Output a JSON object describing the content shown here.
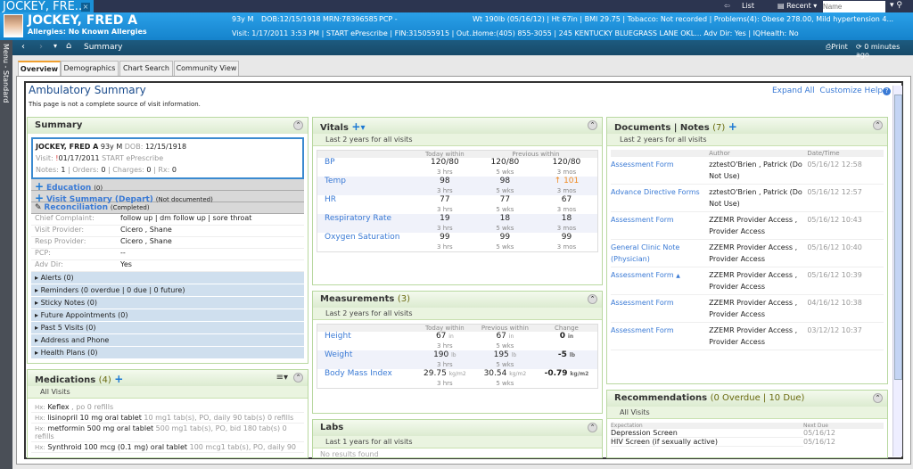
{
  "app": {
    "tab_title": "JOCKEY, FRE...",
    "close": "×",
    "list": "List",
    "recent": "Recent",
    "name_placeholder": "Name"
  },
  "banner": {
    "name": "JOCKEY, FRED A",
    "allergies": "Allergies: No Known Allergies",
    "age_sex": "93y  M",
    "dob": "DOB:12/15/1918",
    "mrn": "MRN:78396585",
    "pcp": "PCP -",
    "visit": "Visit: 1/17/2011 3:53 PM  |  START ePrescribe  |  FIN:315055915  |  Out...",
    "wt": "Wt 190lb (05/16/12)  |  Ht 67in  |  BMI 29.75  |  Tobacco: Not recorded  |  Problems(4):  Obese 278.00, Mild hypertension 4...",
    "home": "Home:(405) 855-3055  |  245 KENTUCKY BLUEGRASS LANE OKL...     Adv Dir: Yes  |  IQHealth: No"
  },
  "nav": {
    "title": "Summary",
    "print": "Print",
    "refresh": "0 minutes ago",
    "menu": "Menu - Standard"
  },
  "tabs": [
    "Overview",
    "Demographics",
    "Chart Search",
    "Community View"
  ],
  "page": {
    "title": "Ambulatory Summary",
    "note": "This page is not a complete source of visit information.",
    "expand_all": "Expand All",
    "customize": "Customize",
    "help": "Help"
  },
  "summary": {
    "title": "Summary",
    "name": "JOCKEY, FRED A",
    "agesex": "93y M",
    "dob_label": "DOB:",
    "dob": "12/15/1918",
    "visit_label": "Visit:",
    "visit_date": "01/17/2011",
    "visit_type": "START ePrescribe",
    "notes_label": "Notes:",
    "notes": "1",
    "orders_label": "Orders:",
    "orders": "0",
    "charges_label": "Charges:",
    "charges": "0",
    "rx_label": "Rx:",
    "rx": "0",
    "education": "Education",
    "education_count": "(0)",
    "visit_summary": "Visit Summary (Depart)",
    "visit_summary_status": "(Not documented)",
    "reconciliation": "Reconciliation",
    "reconciliation_status": "(Completed)",
    "rows": [
      {
        "k": "Chief Complaint:",
        "v": "follow up | dm follow up | sore throat"
      },
      {
        "k": "Visit Provider:",
        "v": "Cicero , Shane"
      },
      {
        "k": "Resp Provider:",
        "v": "Cicero , Shane"
      },
      {
        "k": "PCP:",
        "v": "--"
      },
      {
        "k": "Adv Dir:",
        "v": "Yes"
      }
    ],
    "sections": [
      "Alerts (0)",
      "Reminders (0 overdue | 0 due | 0 future)",
      "Sticky Notes (0)",
      "Future Appointments (0)",
      "Past 5 Visits (0)",
      "Address and Phone",
      "Health Plans (0)"
    ]
  },
  "medications": {
    "title": "Medications",
    "count": "(4)",
    "sub": "All Visits",
    "items": [
      {
        "hx": "Hx:",
        "name": "Keflex",
        "detail": " , po  0 refills"
      },
      {
        "hx": "Hx:",
        "name": "lisinopril 10 mg oral tablet",
        "detail": "  10 mg1 tab(s), PO, daily  90 tab(s) 0 refills"
      },
      {
        "hx": "Hx:",
        "name": "metformin 500 mg oral tablet",
        "detail": "  500 mg1 tab(s), PO, bid  180 tab(s) 0 refills"
      },
      {
        "hx": "Hx:",
        "name": "Synthroid 100 mcg (0.1 mg) oral tablet",
        "detail": "  100 mcg1 tab(s), PO, daily  90"
      }
    ]
  },
  "vitals": {
    "title": "Vitals",
    "sub": "Last 2 years for all visits",
    "h_today": "Today within",
    "h_prev": "Previous within",
    "rows": [
      {
        "n": "BP",
        "t": "120/80",
        "tw": "3 hrs",
        "p1": "120/80",
        "p1w": "5 wks",
        "p2": "120/80",
        "p2w": "3 mos"
      },
      {
        "n": "Temp",
        "t": "98",
        "tw": "3 hrs",
        "p1": "98",
        "p1w": "5 wks",
        "p2": "101",
        "p2w": "3 mos",
        "abn": true
      },
      {
        "n": "HR",
        "t": "77",
        "tw": "3 hrs",
        "p1": "77",
        "p1w": "5 wks",
        "p2": "67",
        "p2w": "3 mos"
      },
      {
        "n": "Respiratory Rate",
        "t": "19",
        "tw": "3 hrs",
        "p1": "18",
        "p1w": "5 wks",
        "p2": "18",
        "p2w": "3 mos"
      },
      {
        "n": "Oxygen Saturation",
        "t": "99",
        "tw": "3 hrs",
        "p1": "99",
        "p1w": "5 wks",
        "p2": "99",
        "p2w": "3 mos"
      }
    ]
  },
  "measurements": {
    "title": "Measurements",
    "count": "(3)",
    "sub": "Last 2 years for all visits",
    "h_today": "Today within",
    "h_prev": "Previous within",
    "h_change": "Change",
    "rows": [
      {
        "n": "Height",
        "t": "67",
        "tu": "in",
        "tw": "3 hrs",
        "p": "67",
        "pu": "in",
        "pw": "5 wks",
        "c": "0",
        "cu": "in"
      },
      {
        "n": "Weight",
        "t": "190",
        "tu": "lb",
        "tw": "3 hrs",
        "p": "195",
        "pu": "lb",
        "pw": "5 wks",
        "c": "-5",
        "cu": "lb"
      },
      {
        "n": "Body Mass Index",
        "t": "29.75",
        "tu": "kg/m2",
        "tw": "3 hrs",
        "p": "30.54",
        "pu": "kg/m2",
        "pw": "5 wks",
        "c": "-0.79",
        "cu": "kg/m2"
      }
    ]
  },
  "labs": {
    "title": "Labs",
    "sub": "Last 1 years for all visits",
    "empty": "No results found"
  },
  "documents": {
    "title": "Documents | Notes",
    "count": "(7)",
    "sub": "Last 2 years for all visits",
    "h_author": "Author",
    "h_date": "Date/Time",
    "rows": [
      {
        "n": "Assessment Form",
        "a": "zztestO'Brien , Patrick (Do Not Use)",
        "d": "05/16/12 12:58"
      },
      {
        "n": "Advance Directive Forms",
        "a": "zztestO'Brien , Patrick (Do Not Use)",
        "d": "05/16/12 12:57"
      },
      {
        "n": "Assessment Form",
        "a": "ZZEMR Provider Access , Provider Access",
        "d": "05/16/12 10:43"
      },
      {
        "n": "General Clinic Note (Physician)",
        "a": "ZZEMR Provider Access , Provider Access",
        "d": "05/16/12 10:40"
      },
      {
        "n": "Assessment Form",
        "a": "ZZEMR Provider Access , Provider Access",
        "d": "05/16/12 10:39"
      },
      {
        "n": "Assessment Form",
        "a": "ZZEMR Provider Access , Provider Access",
        "d": "04/16/12 10:38"
      },
      {
        "n": "Assessment Form",
        "a": "ZZEMR Provider Access , Provider Access",
        "d": "03/12/12 10:37"
      }
    ]
  },
  "recommendations": {
    "title": "Recommendations",
    "count": "(0 Overdue | 10 Due)",
    "sub": "All Visits",
    "h_exp": "Expectation",
    "h_due": "Next Due",
    "rows": [
      {
        "e": "Depression Screen",
        "d": "05/16/12"
      },
      {
        "e": "HIV Screen (if sexually active)",
        "d": "05/16/12"
      }
    ]
  }
}
